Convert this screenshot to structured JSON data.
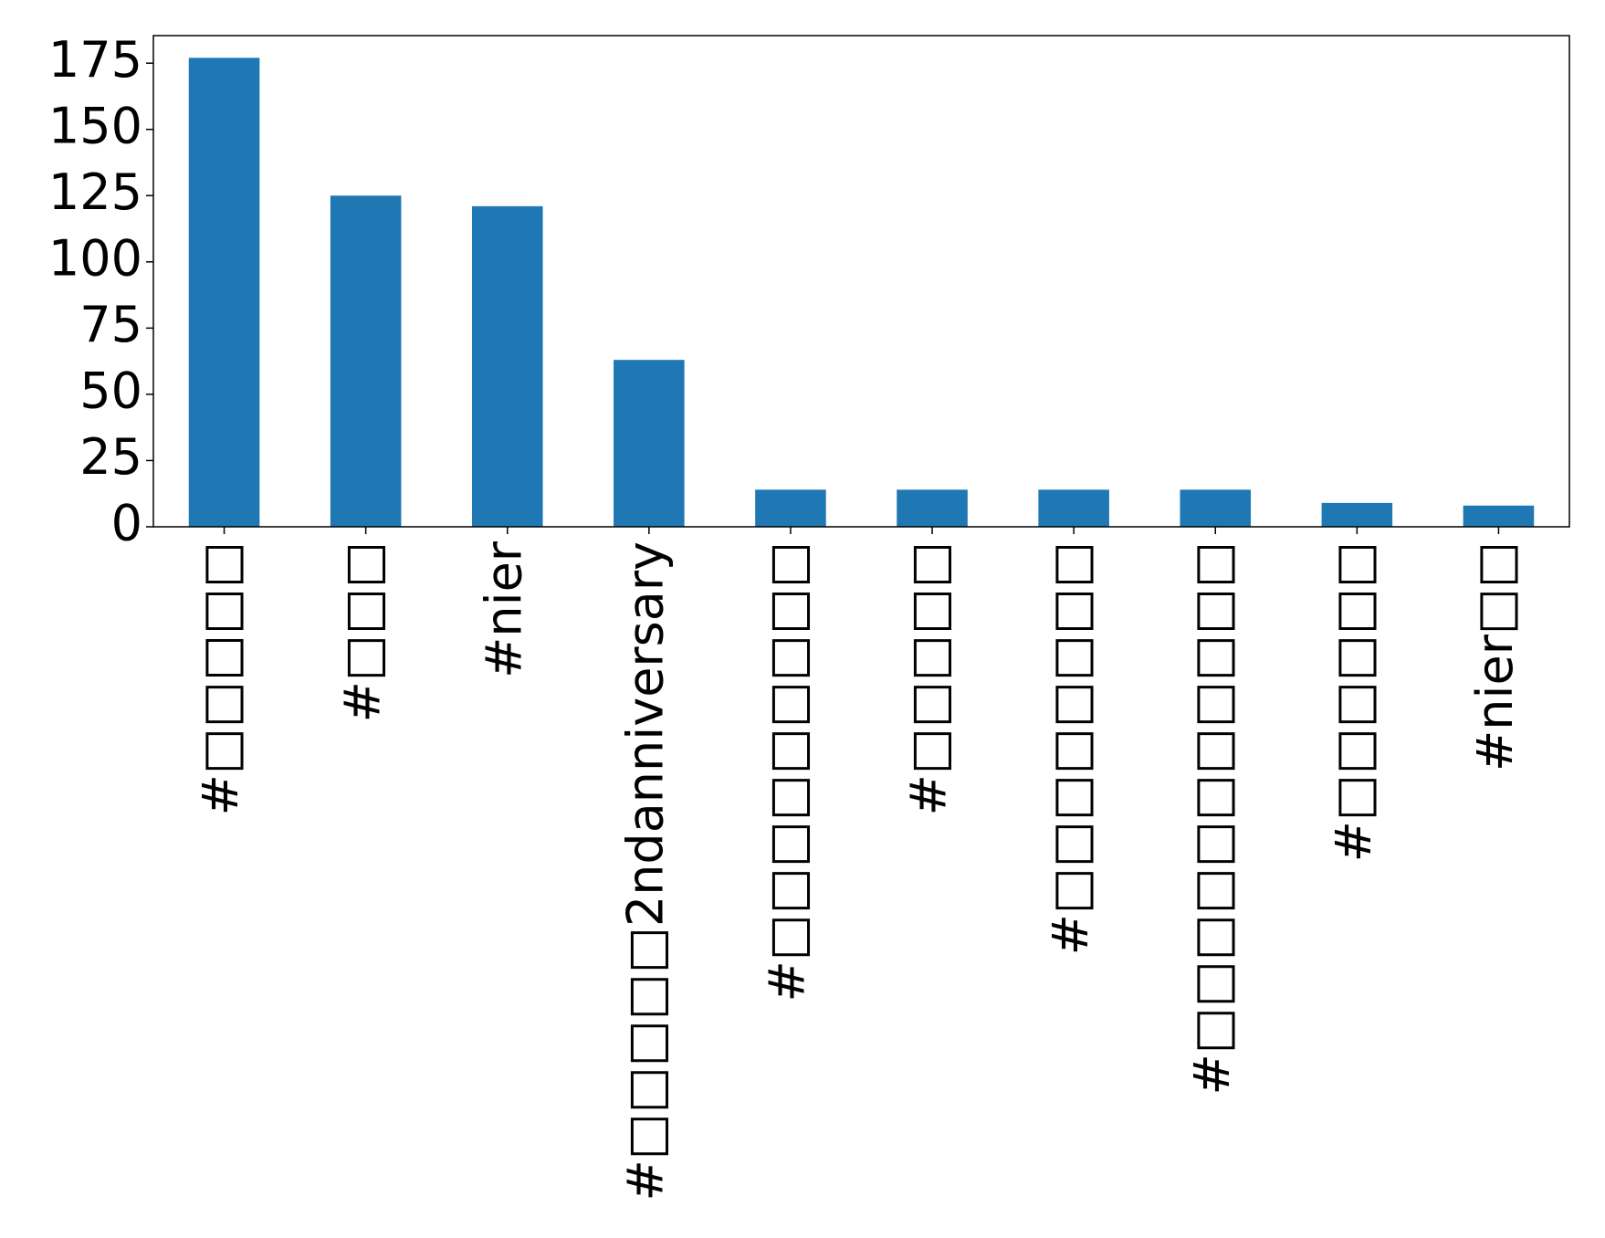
{
  "chart_data": {
    "type": "bar",
    "categories": [
      "#□□□□□",
      "#□□□",
      "#nier",
      "#□□□□□2ndanniversary",
      "#□□□□□□□□□",
      "#□□□□□",
      "#□□□□□□□□",
      "#□□□□□□□□□□□",
      "#□□□□□□",
      "#nier□□"
    ],
    "values": [
      177,
      125,
      121,
      63,
      14,
      14,
      14,
      14,
      9,
      8
    ],
    "color": "#1f77b4",
    "ylim": [
      0,
      185.4
    ],
    "yticks": [
      0,
      25,
      50,
      75,
      100,
      125,
      150,
      175
    ],
    "grid": false
  }
}
